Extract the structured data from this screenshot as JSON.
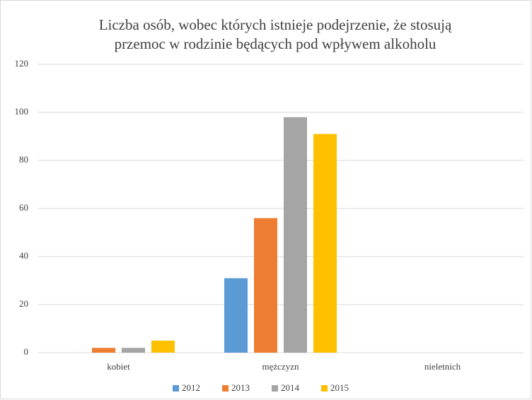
{
  "chart_data": {
    "type": "bar",
    "title": [
      "Liczba osób, wobec których istnieje podejrzenie, że stosują",
      "przemoc w rodzinie będących pod wpływem alkoholu"
    ],
    "categories": [
      "kobiet",
      "mężczyzn",
      "nieletnich"
    ],
    "series": [
      {
        "name": "2012",
        "color": "#5b9bd5",
        "values": [
          0,
          31,
          0
        ]
      },
      {
        "name": "2013",
        "color": "#ed7d31",
        "values": [
          2,
          56,
          0
        ]
      },
      {
        "name": "2014",
        "color": "#a5a5a5",
        "values": [
          2,
          98,
          0
        ]
      },
      {
        "name": "2015",
        "color": "#ffc000",
        "values": [
          5,
          91,
          0
        ]
      }
    ],
    "ylim": [
      0,
      120
    ],
    "yticks": [
      0,
      20,
      40,
      60,
      80,
      100,
      120
    ],
    "grid": true,
    "legend": "bottom"
  }
}
